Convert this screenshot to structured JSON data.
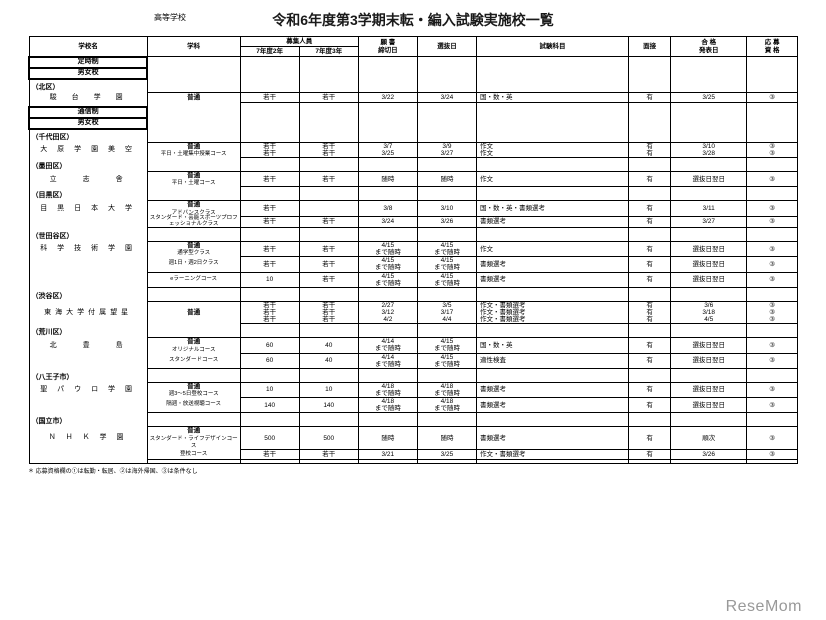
{
  "header": {
    "topLabel": "高等学校",
    "title": "令和6年度第3学期末転・編入試験実施校一覧"
  },
  "columns": {
    "school": "学校名",
    "dept": "学科",
    "recruitGroup": "募集人員",
    "recruitSub1": "7年度2年",
    "recruitSub2": "7年度3年",
    "deadline": "願 書\n締切日",
    "selectDay": "選抜日",
    "subjects": "試験科目",
    "interview": "面接",
    "announce": "合 格\n発表日",
    "appReq": "応 募\n資 格"
  },
  "sections": [
    {
      "label": "定時制"
    },
    {
      "label": "男女校"
    }
  ],
  "wards": [
    {
      "name": "（北区）",
      "rows": [
        {
          "school": "駿　台　学　園",
          "dept": "普通",
          "r1": "若干",
          "r2": "若干",
          "dl": "3/22",
          "sd": "3/24",
          "subj": "国・数・英",
          "iv": "有",
          "an": "3/25",
          "aq": "③"
        }
      ]
    }
  ],
  "sections2": [
    {
      "label": "通信制"
    },
    {
      "label": "男女校"
    }
  ],
  "wards2": [
    {
      "name": "（千代田区）",
      "rows": [
        {
          "school": "大 原 学 園 美 空",
          "dept": "普通",
          "sub": "平日・土曜集中授業コース",
          "r1": "若干\n若干",
          "r2": "若干\n若干",
          "dl": "3/7\n3/25",
          "sd": "3/9\n3/27",
          "subj": "作文\n作文",
          "iv": "有\n有",
          "an": "3/10\n3/28",
          "aq": "③\n③"
        }
      ]
    },
    {
      "name": "（墨田区）",
      "rows": [
        {
          "school": "立　　志　　舎",
          "dept": "普通",
          "sub": "平日・土曜コース",
          "r1": "若干",
          "r2": "若干",
          "dl": "随時",
          "sd": "随時",
          "subj": "作文",
          "iv": "有",
          "an": "選抜日翌日",
          "aq": "③"
        }
      ]
    },
    {
      "name": "（目黒区）",
      "rows": [
        {
          "school": "目 黒 日 本 大 学",
          "dept": "普通",
          "sub": "アドバンスクラス",
          "r1": "若干",
          "r2": "",
          "dl": "3/8",
          "sd": "3/10",
          "subj": "国・数・英・書類選考",
          "iv": "有",
          "an": "3/11",
          "aq": "③"
        },
        {
          "sub": "スタンダード・芸能スポーツプロフェッショナルクラス",
          "r1": "若干",
          "r2": "若干",
          "dl": "3/24",
          "sd": "3/26",
          "subj": "書類選考",
          "iv": "有",
          "an": "3/27",
          "aq": "③"
        }
      ]
    },
    {
      "name": "（世田谷区）",
      "rows": [
        {
          "school": "科 学 技 術 学 園",
          "dept": "普通",
          "sub": "通学型クラス",
          "r1": "若干",
          "r2": "若干",
          "dl": "4/15\nまで随時",
          "sd": "4/15\nまで随時",
          "subj": "作文",
          "iv": "有",
          "an": "選抜日翌日",
          "aq": "③"
        },
        {
          "sub": "週1日・週2日クラス",
          "r1": "若干",
          "r2": "若干",
          "dl": "4/15\nまで随時",
          "sd": "4/15\nまで随時",
          "subj": "書類選考",
          "iv": "有",
          "an": "選抜日翌日",
          "aq": "③"
        },
        {
          "sub": "eラーニングコース",
          "r1": "10",
          "r2": "若干",
          "dl": "4/15\nまで随時",
          "sd": "4/15\nまで随時",
          "subj": "書類選考",
          "iv": "有",
          "an": "選抜日翌日",
          "aq": "③"
        }
      ]
    },
    {
      "name": "（渋谷区）",
      "rows": [
        {
          "school": "東海大学付属望星",
          "dept": "普通",
          "r1": "若干\n若干\n若干",
          "r2": "若干\n若干\n若干",
          "dl": "2/27\n3/12\n4/2",
          "sd": "3/5\n3/17\n4/4",
          "subj": "作文・書類選考\n作文・書類選考\n作文・書類選考",
          "iv": "有\n有\n有",
          "an": "3/6\n3/18\n4/5",
          "aq": "③\n③\n③"
        }
      ]
    },
    {
      "name": "（荒川区）",
      "rows": [
        {
          "school": "北　　豊　　島",
          "dept": "普通",
          "sub": "オリジナルコース",
          "r1": "60",
          "r2": "40",
          "dl": "4/14\nまで随時",
          "sd": "4/15\nまで随時",
          "subj": "国・数・英",
          "iv": "有",
          "an": "選抜日翌日",
          "aq": "③"
        },
        {
          "sub": "スタンダードコース",
          "r1": "60",
          "r2": "40",
          "dl": "4/14\nまで随時",
          "sd": "4/15\nまで随時",
          "subj": "適性検査",
          "iv": "有",
          "an": "選抜日翌日",
          "aq": "③"
        }
      ]
    },
    {
      "name": "（八王子市）",
      "rows": [
        {
          "school": "聖 パ ウ ロ 学 園",
          "dept": "普通",
          "sub": "週3～5日登校コース",
          "r1": "10",
          "r2": "10",
          "dl": "4/18\nまで随時",
          "sd": "4/18\nまで随時",
          "subj": "書類選考",
          "iv": "有",
          "an": "選抜日翌日",
          "aq": "③"
        },
        {
          "sub": "隔週・放送視聴コース",
          "r1": "140",
          "r2": "140",
          "dl": "4/18\nまで随時",
          "sd": "4/18\nまで随時",
          "subj": "書類選考",
          "iv": "有",
          "an": "選抜日翌日",
          "aq": "③"
        }
      ]
    },
    {
      "name": "（国立市）",
      "rows": [
        {
          "school": "Ｎ Ｈ Ｋ 学 園",
          "dept": "普通",
          "sub": "スタンダード・ライフデザインコース",
          "r1": "500",
          "r2": "500",
          "dl": "随時",
          "sd": "随時",
          "subj": "書類選考",
          "iv": "有",
          "an": "順次",
          "aq": "③"
        },
        {
          "sub": "登校コース",
          "r1": "若干",
          "r2": "若干",
          "dl": "3/21",
          "sd": "3/25",
          "subj": "作文・書類選考",
          "iv": "有",
          "an": "3/26",
          "aq": "③"
        }
      ]
    }
  ],
  "footer": {
    "note": "＊ 応募資格欄の①は転勤・転居、②は海外帰国、③は条件なし",
    "watermark": "ReseMom"
  }
}
